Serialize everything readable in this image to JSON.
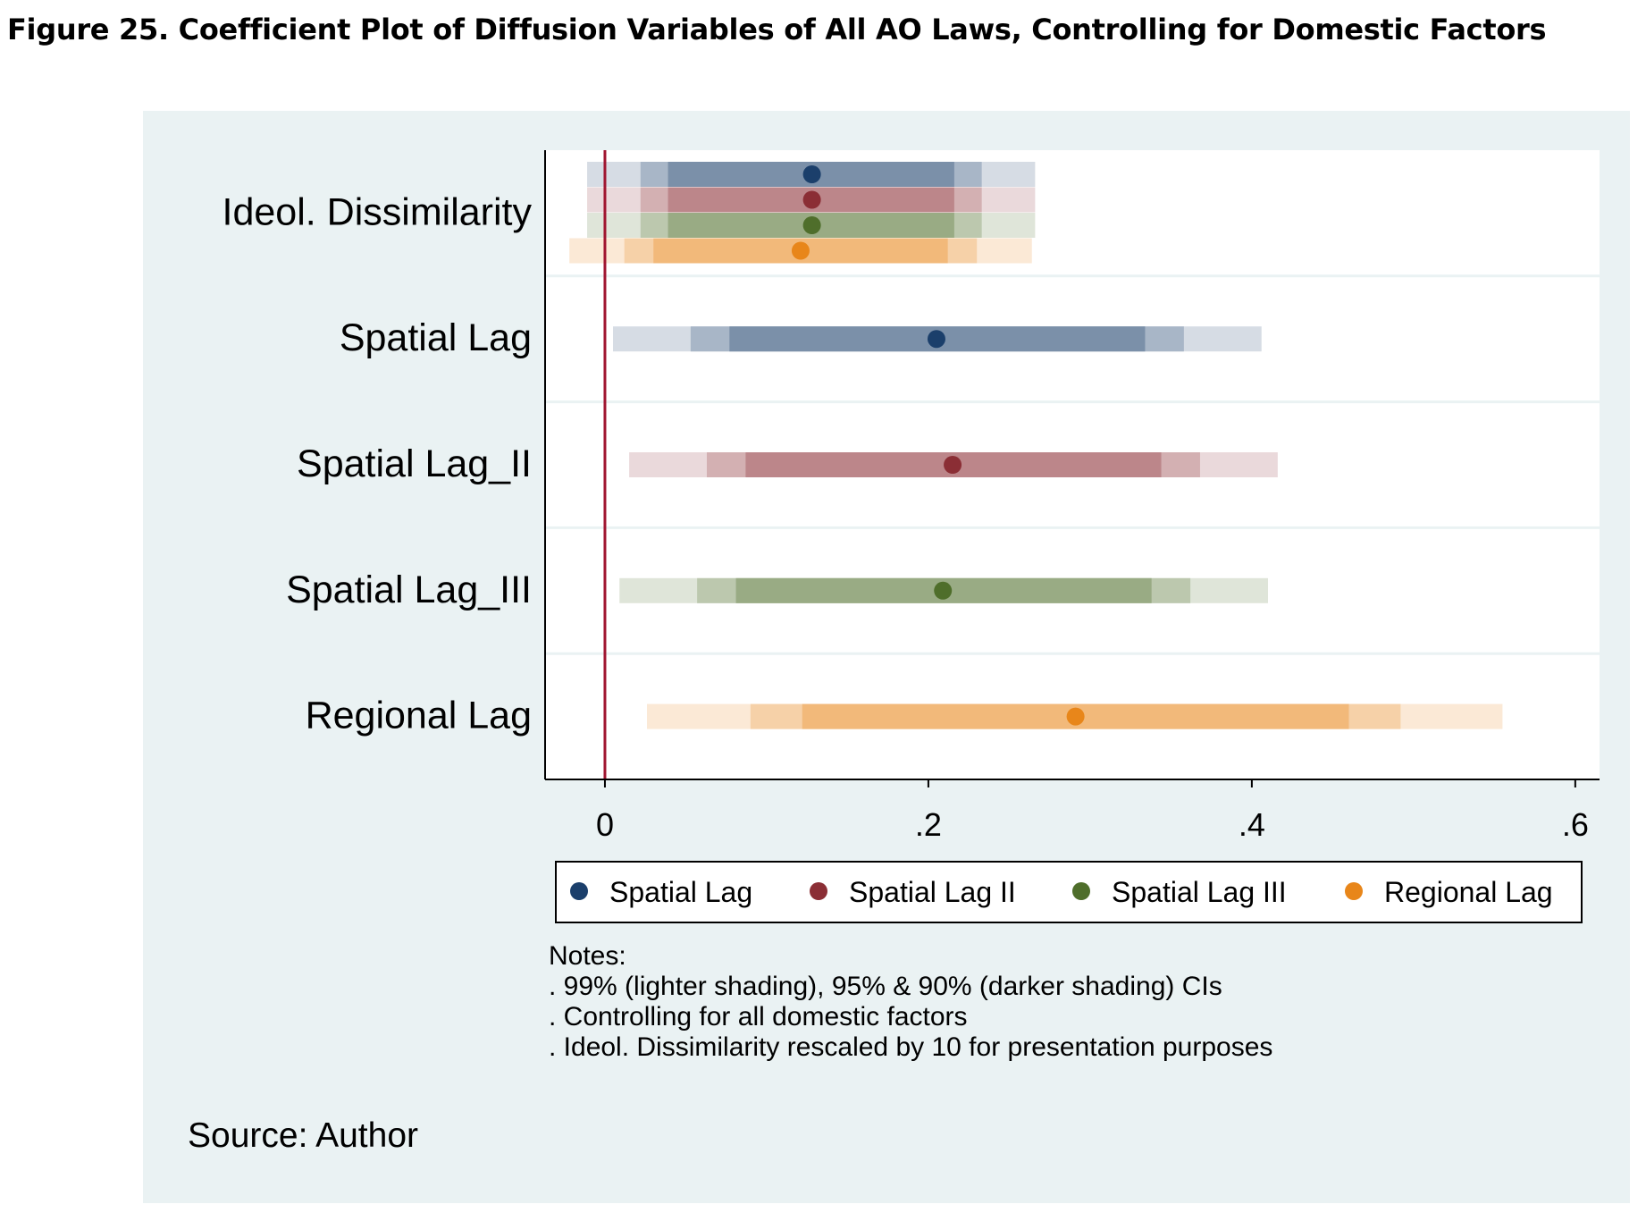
{
  "figure_title": "Figure 25. Coefficient Plot of Diffusion Variables of All AO Laws, Controlling for Domestic Factors",
  "chart_data": {
    "type": "coefficient-plot",
    "title": "",
    "xlabel": "",
    "ylabel": "",
    "xlim": [
      -0.037,
      0.615
    ],
    "x_ticks": [
      0,
      0.2,
      0.4,
      0.6
    ],
    "x_tick_labels": [
      "0",
      ".2",
      ".4",
      ".6"
    ],
    "reference_line": 0,
    "grid": true,
    "legend_position": "bottom",
    "categories": [
      "Ideol. Dissimilarity",
      "Spatial Lag",
      "Spatial Lag_II",
      "Spatial Lag_III",
      "Regional Lag"
    ],
    "series": [
      {
        "name": "Spatial Lag",
        "color": "#1b3f6b",
        "points": [
          {
            "category": "Ideol. Dissimilarity",
            "estimate": 0.128,
            "ci90": [
              0.039,
              0.216
            ],
            "ci95": [
              0.022,
              0.233
            ],
            "ci99": [
              -0.011,
              0.266
            ]
          },
          {
            "category": "Spatial Lag",
            "estimate": 0.205,
            "ci90": [
              0.077,
              0.334
            ],
            "ci95": [
              0.053,
              0.358
            ],
            "ci99": [
              0.005,
              0.406
            ]
          }
        ]
      },
      {
        "name": "Spatial Lag II",
        "color": "#8b2e35",
        "points": [
          {
            "category": "Ideol. Dissimilarity",
            "estimate": 0.128,
            "ci90": [
              0.039,
              0.216
            ],
            "ci95": [
              0.022,
              0.233
            ],
            "ci99": [
              -0.011,
              0.266
            ]
          },
          {
            "category": "Spatial Lag_II",
            "estimate": 0.215,
            "ci90": [
              0.087,
              0.344
            ],
            "ci95": [
              0.063,
              0.368
            ],
            "ci99": [
              0.015,
              0.416
            ]
          }
        ]
      },
      {
        "name": "Spatial Lag III",
        "color": "#4f6e2b",
        "points": [
          {
            "category": "Ideol. Dissimilarity",
            "estimate": 0.128,
            "ci90": [
              0.039,
              0.216
            ],
            "ci95": [
              0.022,
              0.233
            ],
            "ci99": [
              -0.011,
              0.266
            ]
          },
          {
            "category": "Spatial Lag_III",
            "estimate": 0.209,
            "ci90": [
              0.081,
              0.338
            ],
            "ci95": [
              0.057,
              0.362
            ],
            "ci99": [
              0.009,
              0.41
            ]
          }
        ]
      },
      {
        "name": "Regional Lag",
        "color": "#e8861a",
        "points": [
          {
            "category": "Ideol. Dissimilarity",
            "estimate": 0.121,
            "ci90": [
              0.03,
              0.212
            ],
            "ci95": [
              0.012,
              0.23
            ],
            "ci99": [
              -0.022,
              0.264
            ]
          },
          {
            "category": "Regional Lag",
            "estimate": 0.291,
            "ci90": [
              0.122,
              0.46
            ],
            "ci95": [
              0.09,
              0.492
            ],
            "ci99": [
              0.026,
              0.555
            ]
          }
        ]
      }
    ],
    "notes_title": "Notes:",
    "notes": [
      ". 99% (lighter shading), 95% & 90% (darker shading) CIs",
      ". Controlling for all domestic factors",
      ". Ideol. Dissimilarity rescaled by 10 for presentation purposes"
    ],
    "source": "Source: Author"
  }
}
